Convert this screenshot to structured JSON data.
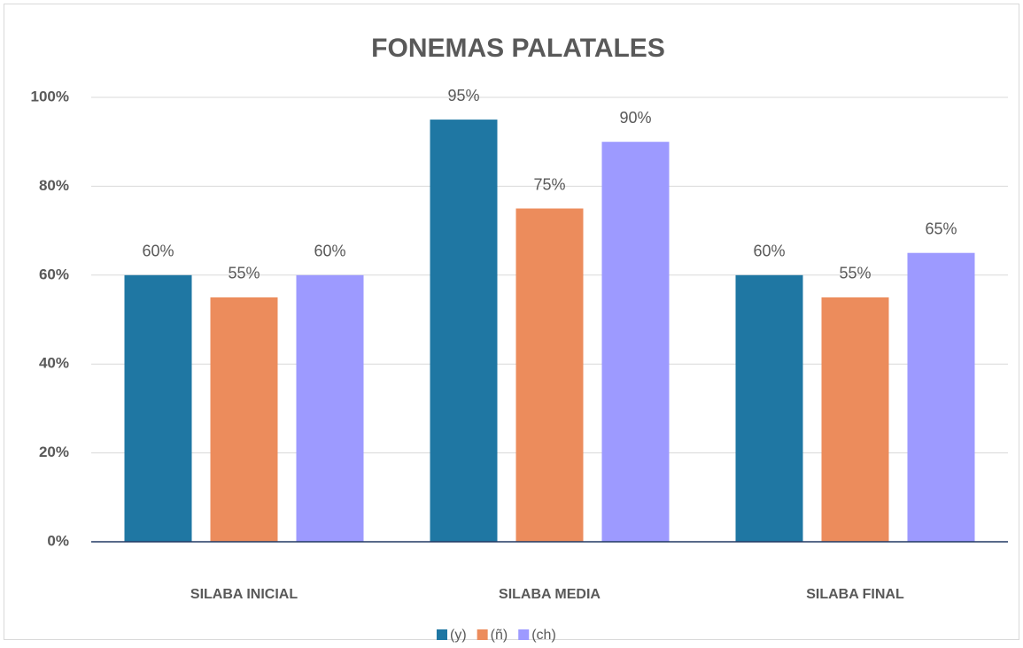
{
  "chart_data": {
    "type": "bar",
    "title": "FONEMAS PALATALES",
    "categories": [
      "SILABA INICIAL",
      "SILABA MEDIA",
      "SILABA FINAL"
    ],
    "series": [
      {
        "name": "(y)",
        "color": "#1f77a3",
        "values": [
          60,
          95,
          60
        ],
        "value_labels": [
          "60%",
          "95%",
          "60%"
        ]
      },
      {
        "name": "(ñ)",
        "color": "#ec8c5c",
        "values": [
          55,
          75,
          55
        ],
        "value_labels": [
          "55%",
          "75%",
          "55%"
        ]
      },
      {
        "name": "(ch)",
        "color": "#9d9aff",
        "values": [
          60,
          90,
          65
        ],
        "value_labels": [
          "60%",
          "90%",
          "65%"
        ]
      }
    ],
    "ylim": [
      0,
      100
    ],
    "yticks": [
      {
        "value": 0,
        "label": "0%"
      },
      {
        "value": 20,
        "label": "20%"
      },
      {
        "value": 40,
        "label": "40%"
      },
      {
        "value": 60,
        "label": "60%"
      },
      {
        "value": 80,
        "label": "80%"
      },
      {
        "value": 100,
        "label": "100%"
      }
    ],
    "grid": true,
    "legend": "bottom"
  }
}
